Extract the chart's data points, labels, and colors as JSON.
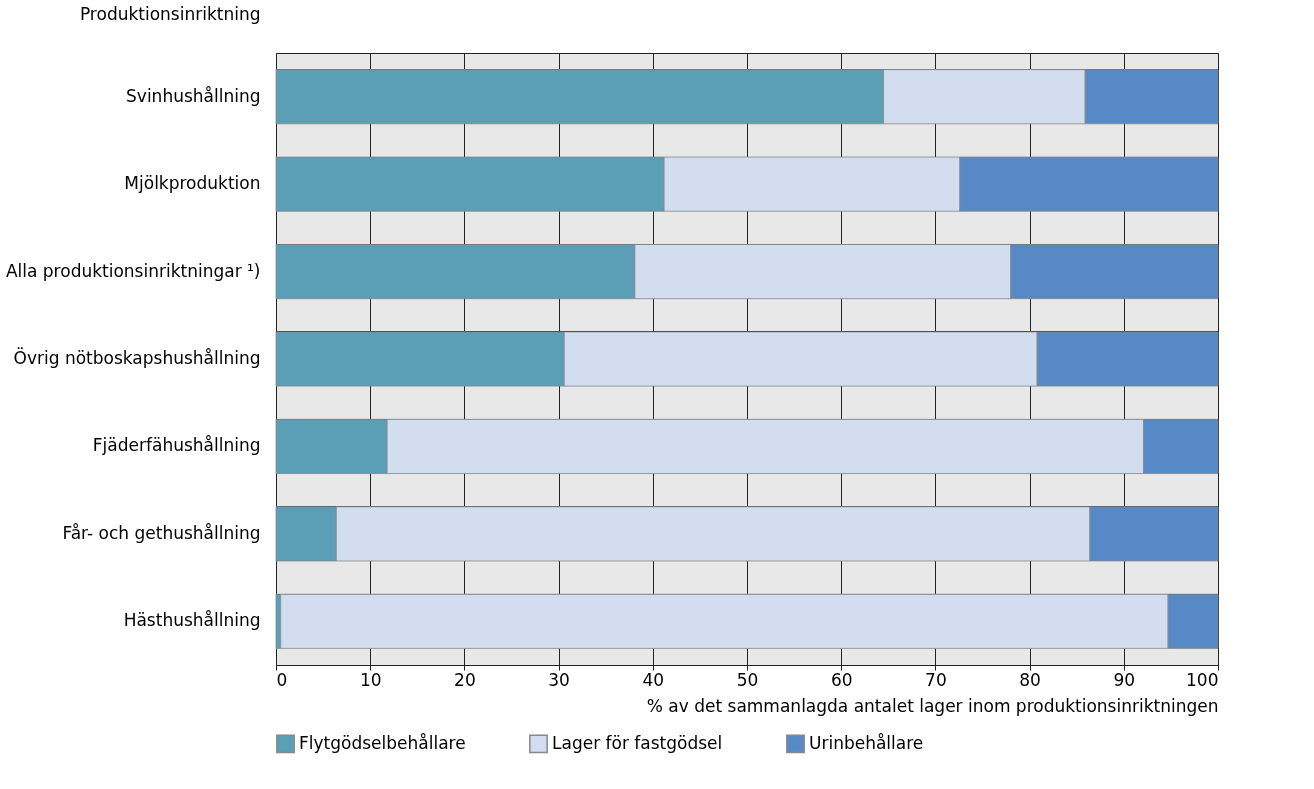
{
  "chart_data": {
    "type": "bar",
    "orientation": "horizontal",
    "stacked": true,
    "ylabel": "Produktionsinriktning",
    "xlabel": "% av det sammanlagda antalet lager inom produktionsinriktningen",
    "categories": [
      "Svinhushållning",
      "Mjölkproduktion",
      "Alla produktionsinriktningar ¹)",
      "Övrig nötboskapshushållning",
      "Fjäderfähushållning",
      "Får- och gethushållning",
      "Hästhushållning"
    ],
    "series": [
      {
        "name": "Flytgödselbehållare",
        "color": "#5a9fb5",
        "values": [
          64.5,
          41.2,
          38.1,
          30.6,
          11.8,
          6.4,
          0.5
        ]
      },
      {
        "name": "Lager för fastgödsel",
        "color": "#d2ddef",
        "values": [
          21.4,
          31.4,
          39.9,
          50.2,
          80.3,
          80.0,
          94.2
        ]
      },
      {
        "name": "Urinbehållare",
        "color": "#5889c7",
        "values": [
          14.1,
          27.4,
          22.0,
          19.2,
          7.9,
          13.6,
          5.3
        ]
      }
    ],
    "xlim": [
      0,
      100
    ],
    "xticks": [
      0,
      10,
      20,
      30,
      40,
      50,
      60,
      70,
      80,
      90,
      100
    ],
    "grid": true,
    "legend": "bottom"
  }
}
